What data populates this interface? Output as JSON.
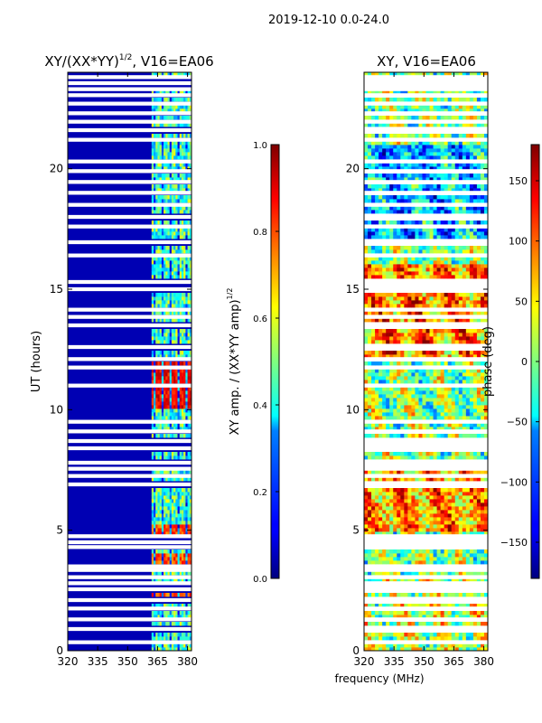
{
  "chart_data": [
    {
      "type": "heatmap",
      "figure_title": "2019-12-10 0.0-24.0",
      "title": "XY/(XX*YY)",
      "title_sup": "1/2",
      "title_suffix": ", V16=EA06",
      "xlabel": "",
      "ylabel": "UT (hours)",
      "xlim": [
        320,
        382
      ],
      "ylim": [
        0,
        24
      ],
      "x_ticks": [
        320,
        335,
        350,
        365,
        380
      ],
      "y_ticks": [
        0,
        5,
        10,
        15,
        20
      ],
      "colorbar": {
        "label": "XY amp. / (XX*YY amp)",
        "label_sup": "1/2",
        "range": [
          0.0,
          1.0
        ],
        "ticks": [
          "0.0",
          "0.2",
          "0.4",
          "0.6",
          "0.8",
          "1.0"
        ],
        "colormap": "jet"
      },
      "description_of_values": {
        "background_below_362MHz": 0.05,
        "band_362_382MHz_typical": 0.45,
        "band_peak_hours_10_12": 0.95,
        "band_peak_hours_5_and_3_5": 0.9
      }
    },
    {
      "type": "heatmap",
      "title": "XY, V16=EA06",
      "xlabel": "frequency (MHz)",
      "ylabel": "",
      "xlim": [
        320,
        382
      ],
      "ylim": [
        0,
        24
      ],
      "x_ticks": [
        320,
        335,
        350,
        365,
        380
      ],
      "y_ticks": [
        0,
        5,
        10,
        15,
        20
      ],
      "colorbar": {
        "label": "phase (deg)",
        "range": [
          -180,
          180
        ],
        "ticks": [
          "−150",
          "−100",
          "−50",
          "0",
          "50",
          "100",
          "150"
        ],
        "colormap": "jet"
      }
    }
  ],
  "flagged_rows_hours": [
    0.35,
    0.9,
    1.3,
    1.75,
    2.1,
    2.55,
    2.8,
    3.05,
    3.35,
    3.5,
    4.3,
    4.5,
    4.75,
    6.9,
    7.25,
    7.55,
    7.8,
    8.4,
    8.7,
    9.1,
    9.5,
    11.0,
    11.75,
    12.1,
    12.6,
    13.5,
    13.85,
    14.15,
    15.0,
    15.3,
    16.4,
    16.95,
    17.6,
    18.0,
    18.5,
    19.0,
    19.45,
    19.9,
    20.3,
    21.2,
    21.6,
    21.95,
    22.3,
    22.7,
    23.05,
    23.3,
    23.55,
    23.8
  ]
}
